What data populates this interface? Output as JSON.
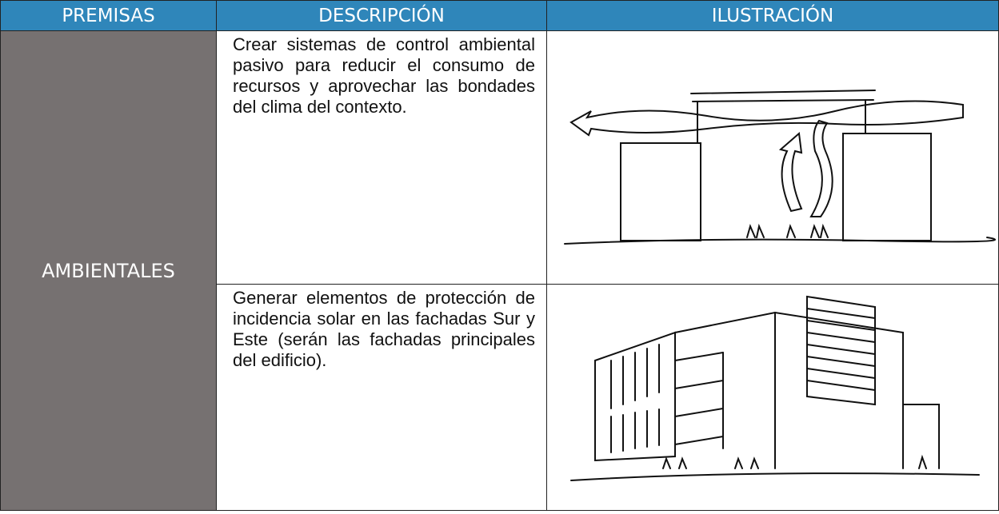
{
  "table": {
    "headers": [
      "PREMISAS",
      "DESCRIPCIÓN",
      "ILUSTRACIÓN"
    ],
    "premise": "AMBIENTALES",
    "rows": [
      {
        "description": "Crear sistemas de control ambiental pasivo para reducir el consumo de recursos y aprovechar las bondades del clima del contexto."
      },
      {
        "description": "Generar elementos de protección de incidencia solar en las fachadas Sur y Este (serán las fachadas principales del edificio)."
      }
    ]
  }
}
